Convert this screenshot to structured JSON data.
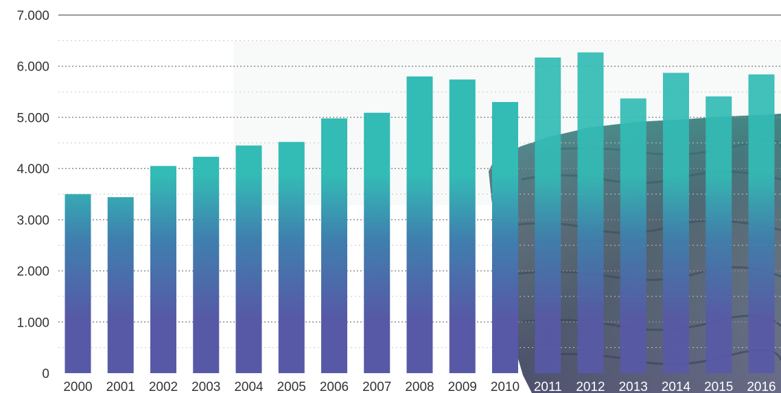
{
  "chart_data": {
    "type": "bar",
    "title": "",
    "xlabel": "",
    "ylabel": "",
    "categories": [
      "2000",
      "2001",
      "2002",
      "2003",
      "2004",
      "2005",
      "2006",
      "2007",
      "2008",
      "2009",
      "2010",
      "2011",
      "2012",
      "2013",
      "2014",
      "2015",
      "2016"
    ],
    "values": [
      3500,
      3440,
      4050,
      4230,
      4450,
      4520,
      4980,
      5090,
      5800,
      5740,
      5300,
      6170,
      6270,
      5370,
      5870,
      5410,
      5840
    ],
    "ylim": [
      0,
      7000
    ],
    "y_ticks": [
      0,
      1000,
      2000,
      3000,
      4000,
      5000,
      6000,
      7000
    ],
    "y_tick_labels": [
      "0",
      "1.000",
      "2.000",
      "3.000",
      "4.000",
      "5.000",
      "6.000",
      "7.000"
    ],
    "grid": "dotted horizontal",
    "colors": {
      "bar_top": "#33bbb5",
      "bar_mid": "#3f7fae",
      "bar_bottom": "#5759a6",
      "grid": "#b0b0b0",
      "axis_top": "#9a9a9a"
    }
  }
}
